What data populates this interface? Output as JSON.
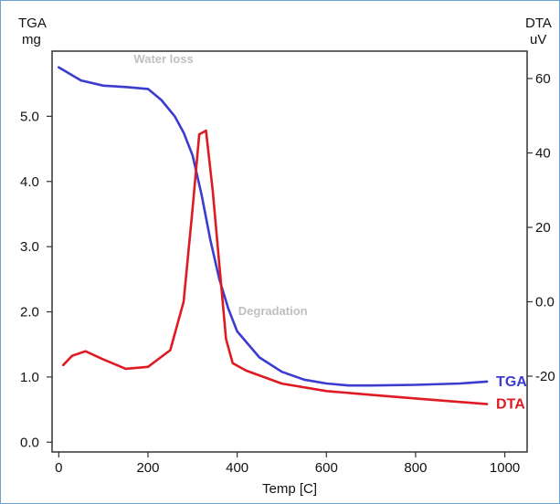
{
  "chart_data": {
    "type": "line",
    "left_axis": {
      "title": "TGA",
      "unit": "mg",
      "ylim": [
        -0.15,
        6.0
      ],
      "ticks": [
        0.0,
        1.0,
        2.0,
        3.0,
        4.0,
        5.0
      ],
      "tick_labels": [
        "0.0",
        "1.0",
        "2.0",
        "3.0",
        "4.0",
        "5.0"
      ]
    },
    "right_axis": {
      "title": "DTA",
      "unit": "uV",
      "ticks": [
        -20,
        0,
        20,
        40,
        60
      ],
      "tick_labels": [
        "-20",
        "0.0",
        "20",
        "40",
        "60"
      ]
    },
    "x_axis": {
      "label": "Temp  [C]",
      "xlim": [
        -15,
        1050
      ],
      "ticks": [
        0,
        200,
        400,
        600,
        800,
        1000
      ],
      "tick_labels": [
        "0",
        "200",
        "400",
        "600",
        "800",
        "1000"
      ]
    },
    "series": [
      {
        "name": "TGA",
        "color": "#3b3bd0",
        "axis": "left",
        "x": [
          0,
          50,
          100,
          150,
          200,
          230,
          260,
          280,
          300,
          320,
          340,
          360,
          380,
          400,
          450,
          500,
          550,
          600,
          650,
          700,
          800,
          900,
          960
        ],
        "y": [
          5.75,
          5.55,
          5.47,
          5.45,
          5.42,
          5.25,
          5.0,
          4.75,
          4.4,
          3.8,
          3.1,
          2.5,
          2.05,
          1.7,
          1.3,
          1.08,
          0.96,
          0.9,
          0.87,
          0.87,
          0.88,
          0.9,
          0.93
        ]
      },
      {
        "name": "DTA",
        "color": "#e01a22",
        "axis": "right",
        "x": [
          10,
          30,
          60,
          100,
          150,
          200,
          250,
          280,
          300,
          315,
          330,
          345,
          360,
          375,
          390,
          420,
          500,
          600,
          700,
          800,
          960
        ],
        "y": [
          -17.0,
          -14.5,
          -13.3,
          -15.5,
          -18.0,
          -17.5,
          -13.0,
          0,
          25.0,
          45.0,
          46.0,
          30.0,
          10.0,
          -10.0,
          -16.5,
          -18.5,
          -22.0,
          -24.0,
          -25.0,
          -26.0,
          -27.5
        ]
      }
    ],
    "annotations": [
      {
        "text": "Water loss",
        "x": 235,
        "y_left": 5.82,
        "color": "#bfbfbf"
      },
      {
        "text": "Degradation",
        "x": 480,
        "y_left": 1.95,
        "color": "#bfbfbf"
      }
    ],
    "legend_placement": "right-end-of-lines",
    "grid": false
  }
}
